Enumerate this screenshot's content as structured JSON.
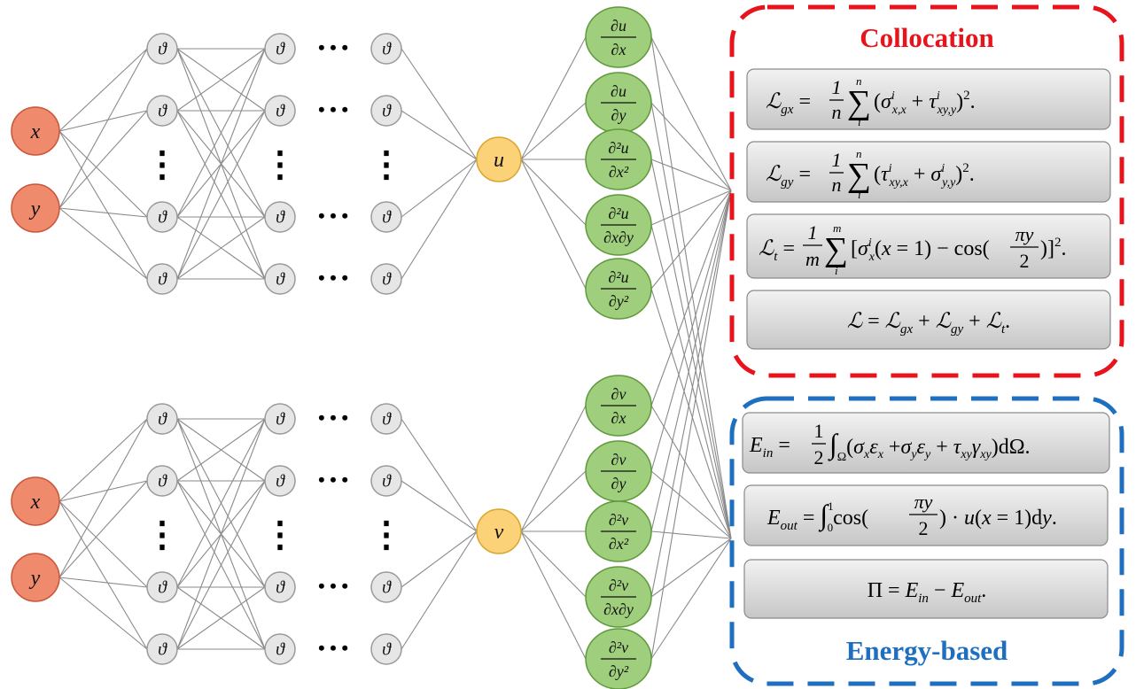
{
  "network": {
    "hidden_label": "ϑ",
    "ellipsis": "• • •",
    "vdots": "⋮",
    "upper": {
      "inputs": [
        "x",
        "y"
      ],
      "output": "u",
      "derivatives": [
        {
          "num": "∂u",
          "den": "∂x"
        },
        {
          "num": "∂u",
          "den": "∂y"
        },
        {
          "num": "∂²u",
          "den": "∂x²"
        },
        {
          "num": "∂²u",
          "den": "∂x∂y"
        },
        {
          "num": "∂²u",
          "den": "∂y²"
        }
      ]
    },
    "lower": {
      "inputs": [
        "x",
        "y"
      ],
      "output": "v",
      "derivatives": [
        {
          "num": "∂v",
          "den": "∂x"
        },
        {
          "num": "∂v",
          "den": "∂y"
        },
        {
          "num": "∂²v",
          "den": "∂x²"
        },
        {
          "num": "∂²v",
          "den": "∂x∂y"
        },
        {
          "num": "∂²v",
          "den": "∂y²"
        }
      ]
    }
  },
  "collocation": {
    "title": "Collocation",
    "color": "#e8141b",
    "formulas": [
      "ℒgx = (1/n) Σᵢⁿ (σⁱx,x + τⁱxy,y)².",
      "ℒgy = (1/n) Σᵢⁿ (τⁱxy,x + σⁱy,y)².",
      "ℒt = (1/m) Σᵢᵐ [σⁱx(x=1) − cos(πy/2)]².",
      "ℒ = ℒgx + ℒgy + ℒt."
    ]
  },
  "energy": {
    "title": "Energy-based",
    "color": "#1f6fc0",
    "formulas": [
      "Ein = (1/2) ∫Ω (σx εx + σy εy + τxy γxy) dΩ.",
      "Eout = ∫₀¹ cos(πy/2) · u(x=1) dy.",
      "Π = Ein − Eout."
    ]
  },
  "colors": {
    "input_fill": "#f08a6c",
    "input_stroke": "#c8553a",
    "hidden_fill": "#e6e6e6",
    "hidden_stroke": "#9a9a9a",
    "output_fill": "#fcd278",
    "output_stroke": "#d9a530",
    "deriv_fill": "#9fce7c",
    "deriv_stroke": "#5f9a3c",
    "edge": "#8a8a8a",
    "formula_box_top": "#efefef",
    "formula_box_bottom": "#c9c9c9"
  }
}
